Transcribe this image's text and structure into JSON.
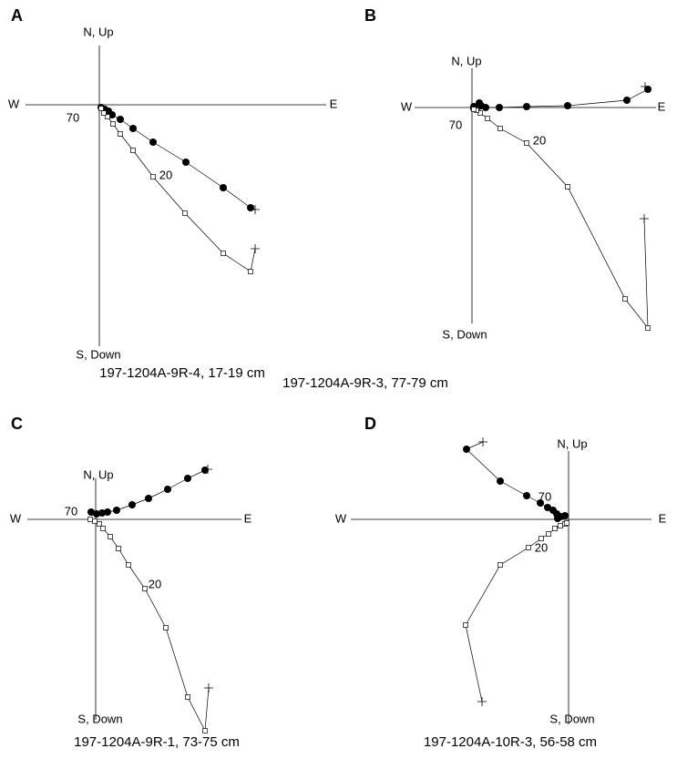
{
  "chart_data": [
    {
      "type": "zijderveld",
      "panel": "A",
      "caption": "197-1204A-9R-4, 17-19 cm",
      "x_left_label": "W",
      "x_right_label": "E",
      "y_top_label": "N, Up",
      "y_bottom_label": "S, Down",
      "annotations": [
        "70",
        "20"
      ],
      "xlim": [
        -8.1,
        24.9
      ],
      "ylim": [
        -26.5,
        6.5
      ],
      "series": [
        {
          "marker": "circle",
          "start_marker": "plus",
          "color": "#000000",
          "x": [
            17.1,
            16.6,
            13.6,
            9.5,
            5.9,
            3.7,
            2.3,
            1.4,
            1.0,
            0.6,
            0.2
          ],
          "values": [
            -11.5,
            -11.3,
            -9.1,
            -6.3,
            -4.1,
            -2.6,
            -1.6,
            -1.1,
            -0.7,
            -0.5,
            -0.3
          ]
        },
        {
          "marker": "square",
          "start_marker": "plus",
          "color": "#000000",
          "x": [
            17.1,
            16.6,
            13.6,
            9.4,
            5.9,
            3.7,
            2.3,
            1.5,
            0.9,
            0.5,
            0.2
          ],
          "values": [
            -15.8,
            -18.3,
            -16.3,
            -11.9,
            -7.9,
            -5.0,
            -3.2,
            -2.1,
            -1.3,
            -0.9,
            -0.4
          ]
        }
      ]
    },
    {
      "type": "zijderveld",
      "panel": "B",
      "caption": "197-1204A-9R-3, 77-79 cm",
      "x_left_label": "W",
      "x_right_label": "E",
      "y_top_label": "N, Up",
      "y_bottom_label": "S, Down",
      "annotations": [
        "70",
        "20"
      ],
      "xlim": [
        -6.3,
        20.2
      ],
      "ylim": [
        -23.7,
        4.3
      ],
      "series": [
        {
          "marker": "circle",
          "start_marker": "plus",
          "color": "#000000",
          "x": [
            19.0,
            19.3,
            17.0,
            10.5,
            6.0,
            3.0,
            1.5,
            1.0,
            0.8,
            0.5,
            0.2,
            0.2
          ],
          "values": [
            2.3,
            2.0,
            0.8,
            0.2,
            0.1,
            0,
            0,
            0.2,
            0.5,
            -0.1,
            -0.1,
            0.1
          ]
        },
        {
          "marker": "square",
          "start_marker": "plus",
          "color": "#000000",
          "x": [
            18.9,
            19.3,
            16.8,
            10.5,
            6.0,
            3.1,
            1.7,
            0.9,
            0.5,
            0.2
          ],
          "values": [
            -12.2,
            -24.2,
            -21.0,
            -8.7,
            -3.9,
            -2.3,
            -1.2,
            -0.6,
            -0.3,
            -0.2
          ]
        }
      ]
    },
    {
      "type": "zijderveld",
      "panel": "C",
      "caption": "197-1204A-9R-1, 73-75 cm",
      "x_left_label": "W",
      "x_right_label": "E",
      "y_top_label": "N, Up",
      "y_bottom_label": "S, Down",
      "annotations": [
        "70",
        "20"
      ],
      "xlim": [
        -7.5,
        16.0
      ],
      "ylim": [
        -22,
        4.5
      ],
      "series": [
        {
          "marker": "circle",
          "start_marker": "plus",
          "color": "#000000",
          "x": [
            12.3,
            12.0,
            10.1,
            7.9,
            5.8,
            4.0,
            2.3,
            1.3,
            0.7,
            0.1,
            -0.5
          ],
          "values": [
            5.5,
            5.4,
            4.5,
            3.3,
            2.3,
            1.6,
            1.0,
            0.8,
            0.7,
            0.6,
            0.8
          ]
        },
        {
          "marker": "square",
          "start_marker": "plus",
          "color": "#000000",
          "x": [
            12.4,
            12.0,
            10.1,
            7.7,
            5.4,
            3.6,
            2.5,
            1.6,
            0.8,
            0.4,
            -0.1,
            -0.6
          ],
          "values": [
            -18.5,
            -23.2,
            -19.5,
            -11.9,
            -7.6,
            -5.0,
            -3.2,
            -1.9,
            -1.0,
            -0.5,
            -0.2,
            0
          ]
        }
      ]
    },
    {
      "type": "zijderveld",
      "panel": "D",
      "caption": "197-1204A-10R-3, 56-58 cm",
      "x_left_label": "W",
      "x_right_label": "E",
      "y_top_label": "N, Up",
      "y_bottom_label": "S, Down",
      "annotations": [
        "70",
        "20"
      ],
      "xlim": [
        -23.9,
        9.1
      ],
      "ylim": [
        -22.5,
        7.5
      ],
      "series": [
        {
          "marker": "circle",
          "start_marker": "plus",
          "color": "#000000",
          "x": [
            -9.4,
            -11.2,
            -7.5,
            -4.6,
            -3.1,
            -2.3,
            -1.7,
            -1.3,
            -0.9,
            -0.4,
            -1.2
          ],
          "values": [
            8.5,
            7.7,
            4.2,
            2.6,
            1.8,
            1.3,
            1.0,
            0.6,
            0.3,
            0.4,
            0.1
          ]
        },
        {
          "marker": "square",
          "start_marker": "plus",
          "color": "#000000",
          "x": [
            -9.5,
            -11.3,
            -7.5,
            -4.4,
            -3.0,
            -2.2,
            -1.5,
            -0.9,
            -0.4,
            -0.2
          ],
          "values": [
            -20.0,
            -11.6,
            -5.0,
            -3.1,
            -2.1,
            -1.6,
            -1.0,
            -0.7,
            -0.5,
            -0.4
          ]
        }
      ]
    }
  ]
}
